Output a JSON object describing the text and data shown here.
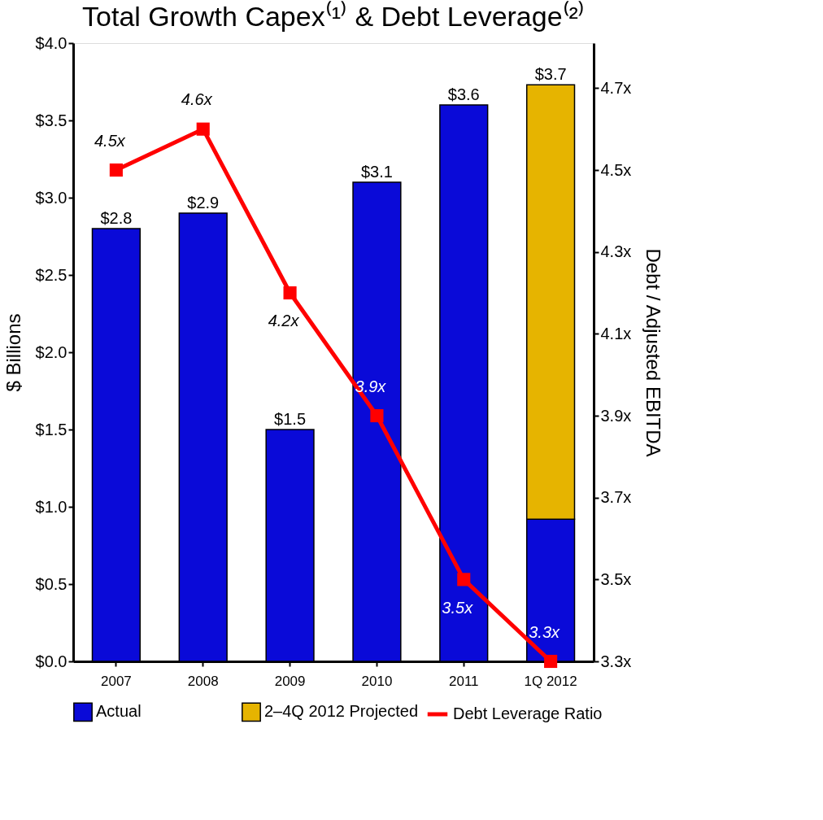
{
  "chart_data": {
    "type": "bar",
    "title": "Total Growth Capex⁽¹⁾ & Debt Leverage⁽²⁾",
    "ylabel": "$ Billions",
    "y2label": "Debt / Adjusted EBITDA",
    "categories": [
      "2007",
      "2008",
      "2009",
      "2010",
      "2011",
      "1Q 2012"
    ],
    "stacked": true,
    "series": [
      {
        "name": "Actual",
        "color": "#0a0ad8",
        "values": [
          2.8,
          2.9,
          1.5,
          3.1,
          3.6,
          0.92
        ]
      },
      {
        "name": "2–4Q 2012 Projected",
        "color": "#e6b400",
        "values": [
          null,
          null,
          null,
          null,
          null,
          2.81
        ]
      },
      {
        "name": "Debt Leverage Ratio",
        "type": "line",
        "axis": "y2",
        "color": "#ff0000",
        "marker": "square",
        "line_style": "solid",
        "values": [
          4.5,
          4.6,
          4.2,
          3.9,
          3.5,
          3.3
        ],
        "value_labels": [
          "4.5x",
          "4.6x",
          "4.2x",
          "3.9x",
          "3.5x",
          "3.3x"
        ]
      }
    ],
    "totals": [
      "$2.8",
      "$2.9",
      "$1.5",
      "$3.1",
      "$3.6",
      "$3.7"
    ],
    "ylim": [
      0,
      4
    ],
    "yticks": [
      {
        "value": 0,
        "label": "$0.0"
      },
      {
        "value": 0.5,
        "label": "$0.5"
      },
      {
        "value": 1,
        "label": "$1.0"
      },
      {
        "value": 1.5,
        "label": "$1.5"
      },
      {
        "value": 2,
        "label": "$2.0"
      },
      {
        "value": 2.5,
        "label": "$2.5"
      },
      {
        "value": 3,
        "label": "$3.0"
      },
      {
        "value": 3.5,
        "label": "$3.5"
      },
      {
        "value": 4,
        "label": "$4.0"
      }
    ],
    "y2lim": [
      3.3,
      4.81
    ],
    "y2ticks": [
      {
        "value": 3.3,
        "label": "3.3x"
      },
      {
        "value": 3.5,
        "label": "3.5x"
      },
      {
        "value": 3.7,
        "label": "3.7x"
      },
      {
        "value": 3.9,
        "label": "3.9x"
      },
      {
        "value": 4.1,
        "label": "4.1x"
      },
      {
        "value": 4.3,
        "label": "4.3x"
      },
      {
        "value": 4.5,
        "label": "4.5x"
      },
      {
        "value": 4.7,
        "label": "4.7x"
      }
    ],
    "grid": false,
    "legend": "bottom"
  }
}
